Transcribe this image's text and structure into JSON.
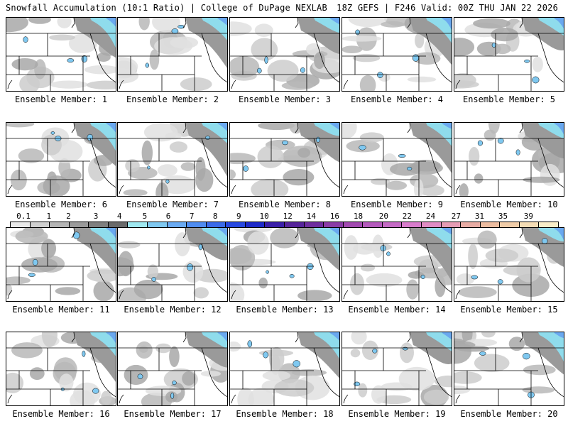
{
  "header": {
    "left_title": "Snowfall Accumulation (10:1 Ratio) | College of DuPage NEXLAB",
    "right_title": "18Z GEFS | F246 Valid: 00Z THU JAN 22 2026"
  },
  "members": [
    {
      "label": "Ensemble Member: 1"
    },
    {
      "label": "Ensemble Member: 2"
    },
    {
      "label": "Ensemble Member: 3"
    },
    {
      "label": "Ensemble Member: 4"
    },
    {
      "label": "Ensemble Member: 5"
    },
    {
      "label": "Ensemble Member: 6"
    },
    {
      "label": "Ensemble Member: 7"
    },
    {
      "label": "Ensemble Member: 8"
    },
    {
      "label": "Ensemble Member: 9"
    },
    {
      "label": "Ensemble Member: 10"
    },
    {
      "label": "Ensemble Member: 11"
    },
    {
      "label": "Ensemble Member: 12"
    },
    {
      "label": "Ensemble Member: 13"
    },
    {
      "label": "Ensemble Member: 14"
    },
    {
      "label": "Ensemble Member: 15"
    },
    {
      "label": "Ensemble Member: 16"
    },
    {
      "label": "Ensemble Member: 17"
    },
    {
      "label": "Ensemble Member: 18"
    },
    {
      "label": "Ensemble Member: 19"
    },
    {
      "label": "Ensemble Member: 20"
    }
  ],
  "legend": {
    "labels": [
      "0.1",
      "1",
      "2",
      "3",
      "4",
      "5",
      "6",
      "7",
      "8",
      "9",
      "10",
      "12",
      "14",
      "16",
      "18",
      "20",
      "22",
      "24",
      "27",
      "31",
      "35",
      "39"
    ],
    "colors": [
      "#e8e8e8",
      "#cfcfcf",
      "#b4b4b4",
      "#9a9a9a",
      "#7f7f7f",
      "#6a6a6a",
      "#9fe8f0",
      "#7fc8f0",
      "#6aaaf2",
      "#4f8cf0",
      "#3a6ae8",
      "#2848e0",
      "#1e2ac8",
      "#3a1ea8",
      "#56249a",
      "#6e2e9e",
      "#8a3ca6",
      "#a24ab0",
      "#b45abc",
      "#c46ac4",
      "#d87ccc",
      "#e08cc4",
      "#e59cb4",
      "#e8aca4",
      "#ecbca0",
      "#f0cca8",
      "#f4dcb4",
      "#f8ecc8"
    ]
  }
}
